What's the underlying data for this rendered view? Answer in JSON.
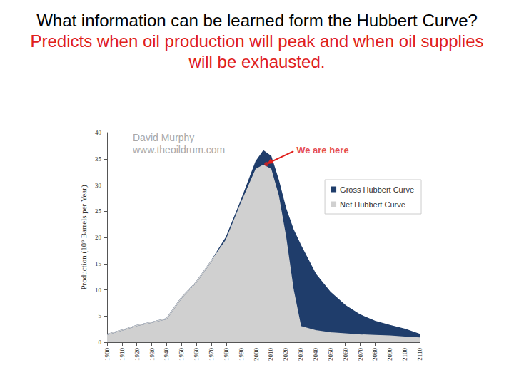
{
  "chart_data": {
    "type": "area",
    "title": "What information can be learned form the Hubbert Curve?",
    "subtitle": "Predicts when oil production will peak and when oil supplies will be exhausted.",
    "y_label": "Production (10⁹ Barrels per Year)",
    "x": [
      1900,
      1910,
      1920,
      1930,
      1940,
      1950,
      1960,
      1970,
      1980,
      1990,
      2000,
      2005,
      2010,
      2015,
      2020,
      2025,
      2030,
      2040,
      2050,
      2060,
      2070,
      2080,
      2090,
      2100,
      2110
    ],
    "series": [
      {
        "name": "Gross Hubbert Curve",
        "color": "#1f3d6b",
        "values": [
          1.5,
          2.3,
          3.2,
          3.8,
          4.5,
          8.5,
          11.5,
          15.5,
          20,
          27,
          34.5,
          36.5,
          35.5,
          31,
          25.5,
          21.5,
          18.5,
          13,
          9.5,
          7,
          5.2,
          4,
          3.2,
          2.5,
          1.5
        ]
      },
      {
        "name": "Net Hubbert Curve",
        "color": "#d0d0d0",
        "values": [
          1.5,
          2.3,
          3.2,
          3.8,
          4.5,
          8.5,
          11.5,
          15.5,
          19.5,
          26.5,
          33,
          33.8,
          33,
          28,
          20,
          10,
          3,
          2.2,
          1.8,
          1.6,
          1.4,
          1.3,
          1.2,
          1.0,
          0.8
        ]
      }
    ],
    "xlim": [
      1900,
      2110
    ],
    "xticks": [
      1900,
      1910,
      1920,
      1930,
      1940,
      1950,
      1960,
      1970,
      1980,
      1990,
      2000,
      2010,
      2020,
      2030,
      2040,
      2050,
      2060,
      2070,
      2080,
      2090,
      2100,
      2110
    ],
    "ylim": [
      0,
      40
    ],
    "yticks": [
      0,
      5,
      10,
      15,
      20,
      25,
      30,
      35,
      40
    ],
    "grid": false,
    "legend": "right",
    "annotations": [
      {
        "text": "David Murphy"
      },
      {
        "text": "www.theoildrum.com"
      },
      {
        "text": "We are here",
        "x": 2007,
        "y": 34,
        "color": "#e0201c"
      }
    ]
  }
}
